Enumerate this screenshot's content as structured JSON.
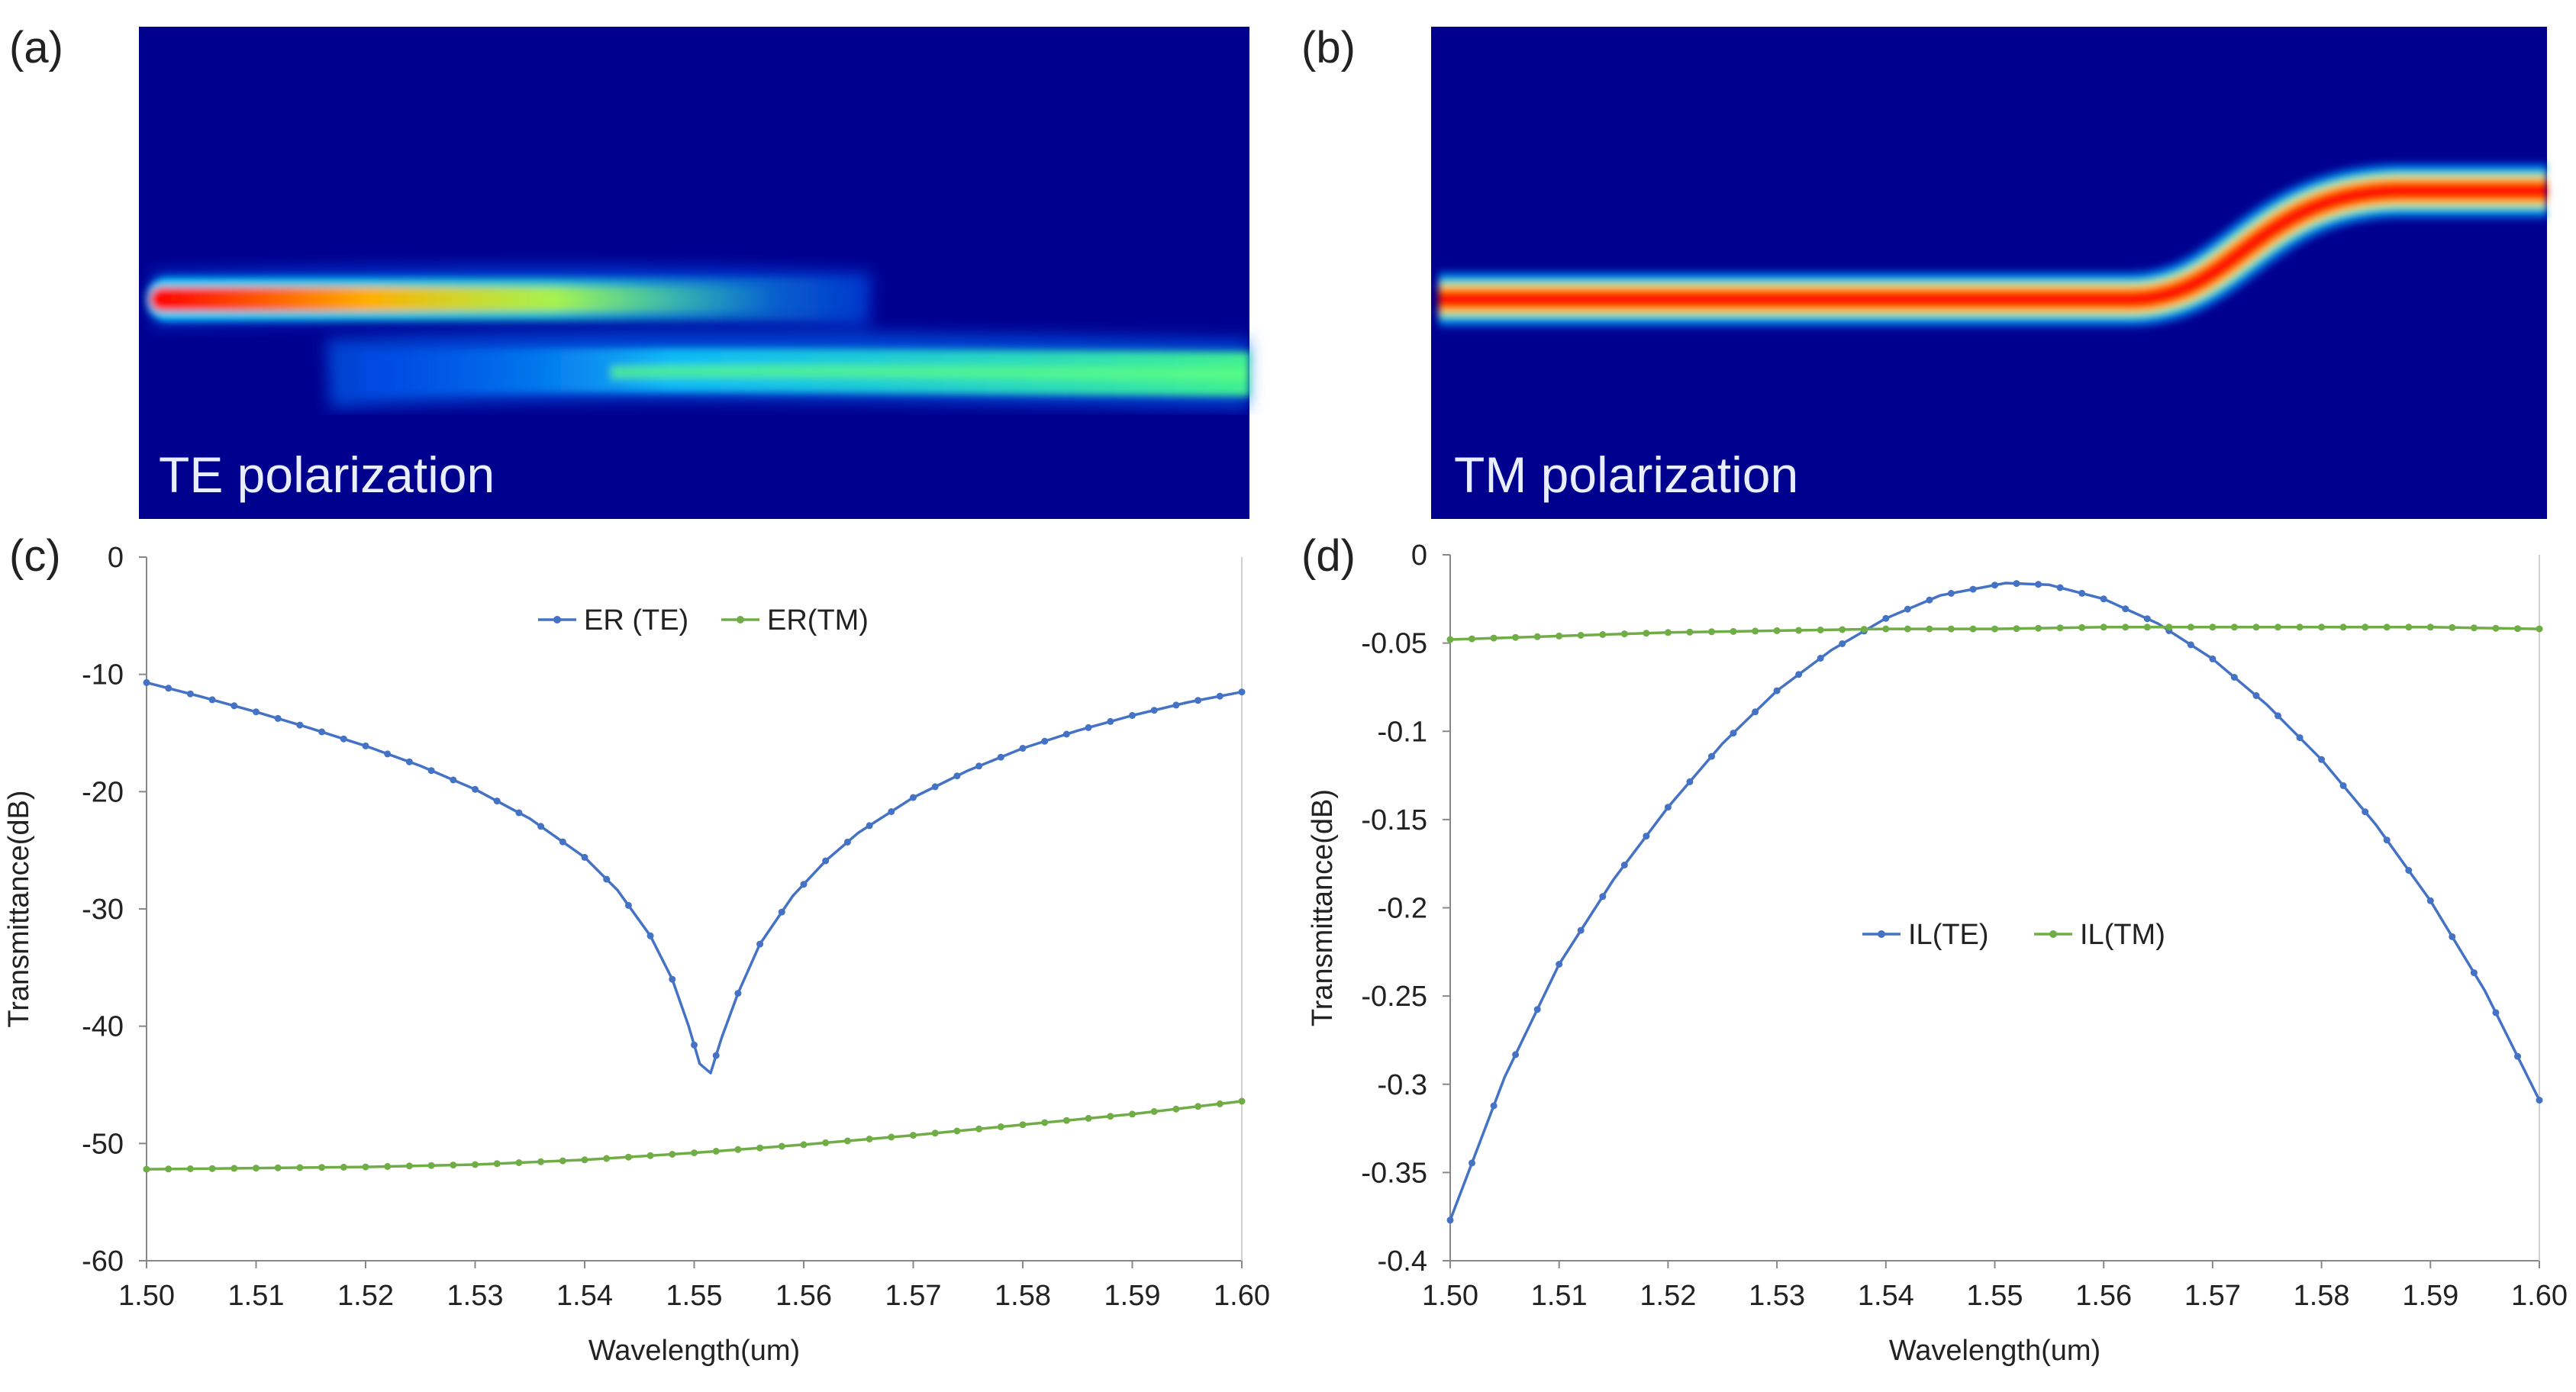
{
  "panels": {
    "a": {
      "label": "(a)",
      "caption": "TE polarization"
    },
    "b": {
      "label": "(b)",
      "caption": "TM polarization"
    },
    "c": {
      "label": "(c)"
    },
    "d": {
      "label": "(d)"
    }
  },
  "colors": {
    "te": "#4472c4",
    "tm": "#70ad47",
    "axis": "#888888",
    "fieldBackground": "#00008f"
  },
  "chart_data": [
    {
      "id": "c",
      "type": "line",
      "xlabel": "Wavelength(um)",
      "ylabel": "Transmittance(dB)",
      "xlim": [
        1.5,
        1.6
      ],
      "ylim": [
        -60,
        0
      ],
      "xticks": [
        "1.50",
        "1.51",
        "1.52",
        "1.53",
        "1.54",
        "1.55",
        "1.56",
        "1.57",
        "1.58",
        "1.59",
        "1.60"
      ],
      "yticks": [
        "0",
        "-10",
        "-20",
        "-30",
        "-40",
        "-50",
        "-60"
      ],
      "legend": "top-center",
      "series": [
        {
          "name": "ER (TE)",
          "color": "#4472c4",
          "x": [
            1.5,
            1.505,
            1.51,
            1.515,
            1.52,
            1.525,
            1.53,
            1.535,
            1.54,
            1.543,
            1.546,
            1.548,
            1.5495,
            1.5505,
            1.5515,
            1.5525,
            1.554,
            1.556,
            1.559,
            1.562,
            1.565,
            1.57,
            1.575,
            1.58,
            1.585,
            1.59,
            1.595,
            1.6
          ],
          "y": [
            -10.7,
            -11.9,
            -13.2,
            -14.6,
            -16.1,
            -17.8,
            -19.8,
            -22.3,
            -25.6,
            -28.4,
            -32.3,
            -36.0,
            -40.0,
            -43.2,
            -44.0,
            -41.0,
            -37.2,
            -33.0,
            -28.9,
            -25.9,
            -23.5,
            -20.5,
            -18.2,
            -16.3,
            -14.8,
            -13.5,
            -12.4,
            -11.5
          ]
        },
        {
          "name": "ER(TM)",
          "color": "#70ad47",
          "x": [
            1.5,
            1.51,
            1.52,
            1.53,
            1.54,
            1.55,
            1.56,
            1.57,
            1.58,
            1.59,
            1.6
          ],
          "y": [
            -52.2,
            -52.1,
            -52.0,
            -51.8,
            -51.4,
            -50.8,
            -50.1,
            -49.3,
            -48.4,
            -47.5,
            -46.4
          ]
        }
      ]
    },
    {
      "id": "d",
      "type": "line",
      "xlabel": "Wavelength(um)",
      "ylabel": "Transmittance(dB)",
      "xlim": [
        1.5,
        1.6
      ],
      "ylim": [
        -0.4,
        0
      ],
      "xticks": [
        "1.50",
        "1.51",
        "1.52",
        "1.53",
        "1.54",
        "1.55",
        "1.56",
        "1.57",
        "1.58",
        "1.59",
        "1.60"
      ],
      "yticks": [
        "0",
        "-0.05",
        "-0.1",
        "-0.15",
        "-0.2",
        "-0.25",
        "-0.3",
        "-0.35",
        "-0.4"
      ],
      "legend": "center",
      "series": [
        {
          "name": "IL(TE)",
          "color": "#4472c4",
          "x": [
            1.5,
            1.505,
            1.51,
            1.515,
            1.52,
            1.525,
            1.53,
            1.535,
            1.54,
            1.545,
            1.551,
            1.555,
            1.56,
            1.565,
            1.57,
            1.575,
            1.58,
            1.585,
            1.59,
            1.595,
            1.6
          ],
          "y": [
            -0.377,
            -0.296,
            -0.232,
            -0.184,
            -0.143,
            -0.107,
            -0.077,
            -0.054,
            -0.036,
            -0.023,
            -0.016,
            -0.017,
            -0.025,
            -0.039,
            -0.059,
            -0.085,
            -0.116,
            -0.153,
            -0.196,
            -0.247,
            -0.309
          ]
        },
        {
          "name": "IL(TM)",
          "color": "#70ad47",
          "x": [
            1.5,
            1.51,
            1.52,
            1.53,
            1.54,
            1.55,
            1.56,
            1.57,
            1.58,
            1.59,
            1.6
          ],
          "y": [
            -0.048,
            -0.046,
            -0.044,
            -0.043,
            -0.042,
            -0.042,
            -0.041,
            -0.041,
            -0.041,
            -0.041,
            -0.042
          ]
        }
      ]
    }
  ]
}
